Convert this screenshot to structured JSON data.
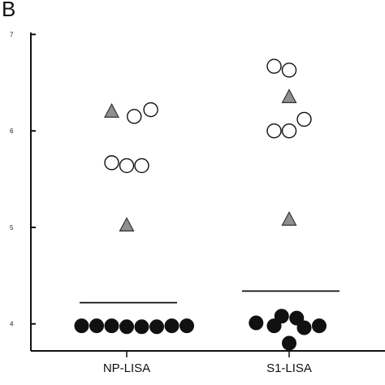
{
  "panel_letter": "B",
  "chart_data": {
    "type": "scatter",
    "categories": [
      "NP-LISA",
      "S1-LISA"
    ],
    "y_ticks": [
      {
        "value": 4,
        "label": "4"
      },
      {
        "value": 5,
        "label": "5"
      },
      {
        "value": 6,
        "label": "6"
      },
      {
        "value": 7,
        "label": "7"
      }
    ],
    "ylim": [
      3.72,
      7.02
    ],
    "xlabel": "",
    "ylabel": "",
    "grid": false,
    "colors": {
      "filled_marker": "#111111",
      "triangle_fill": "#8f8f8f",
      "open_marker_stroke": "#111111",
      "axis": "#111111"
    },
    "cutoffs": [
      {
        "category": "NP-LISA",
        "value": 4.22
      },
      {
        "category": "S1-LISA",
        "value": 4.34
      }
    ],
    "series": [
      {
        "marker": "filled-circle",
        "points": [
          {
            "category": "NP-LISA",
            "offset": -2,
            "y": 3.98
          },
          {
            "category": "NP-LISA",
            "offset": -1,
            "y": 3.98
          },
          {
            "category": "NP-LISA",
            "offset": 0,
            "y": 3.97
          },
          {
            "category": "NP-LISA",
            "offset": 1,
            "y": 3.97
          },
          {
            "category": "NP-LISA",
            "offset": 2,
            "y": 3.97
          },
          {
            "category": "NP-LISA",
            "offset": 3,
            "y": 3.98
          },
          {
            "category": "NP-LISA",
            "offset": 4,
            "y": 3.98
          },
          {
            "category": "NP-LISA",
            "offset": -3,
            "y": 3.98
          },
          {
            "category": "S1-LISA",
            "offset": -2.2,
            "y": 4.01
          },
          {
            "category": "S1-LISA",
            "offset": -1,
            "y": 3.98
          },
          {
            "category": "S1-LISA",
            "offset": -0.5,
            "y": 4.08
          },
          {
            "category": "S1-LISA",
            "offset": 0.5,
            "y": 4.06
          },
          {
            "category": "S1-LISA",
            "offset": 1,
            "y": 3.96
          },
          {
            "category": "S1-LISA",
            "offset": 2,
            "y": 3.98
          },
          {
            "category": "S1-LISA",
            "offset": 0,
            "y": 3.8
          }
        ]
      },
      {
        "marker": "open-circle",
        "points": [
          {
            "category": "NP-LISA",
            "offset": 0.5,
            "y": 6.15
          },
          {
            "category": "NP-LISA",
            "offset": 1.6,
            "y": 6.22
          },
          {
            "category": "NP-LISA",
            "offset": -1,
            "y": 5.67
          },
          {
            "category": "NP-LISA",
            "offset": 0,
            "y": 5.64
          },
          {
            "category": "NP-LISA",
            "offset": 1,
            "y": 5.64
          },
          {
            "category": "S1-LISA",
            "offset": -1,
            "y": 6.67
          },
          {
            "category": "S1-LISA",
            "offset": 0,
            "y": 6.63
          },
          {
            "category": "S1-LISA",
            "offset": -1,
            "y": 6.0
          },
          {
            "category": "S1-LISA",
            "offset": 0,
            "y": 6.0
          },
          {
            "category": "S1-LISA",
            "offset": 1,
            "y": 6.12
          }
        ]
      },
      {
        "marker": "gray-triangle",
        "points": [
          {
            "category": "NP-LISA",
            "offset": -1,
            "y": 6.21
          },
          {
            "category": "NP-LISA",
            "offset": 0,
            "y": 5.03
          },
          {
            "category": "S1-LISA",
            "offset": 0,
            "y": 6.36
          },
          {
            "category": "S1-LISA",
            "offset": 0,
            "y": 5.09
          }
        ]
      }
    ]
  }
}
